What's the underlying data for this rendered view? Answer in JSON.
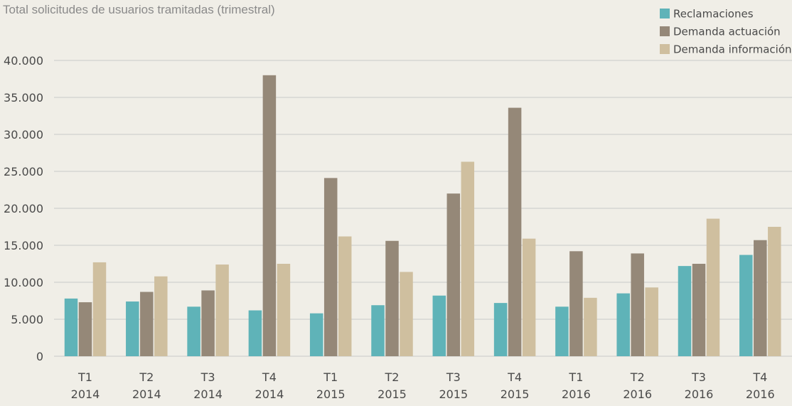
{
  "chart_data": {
    "type": "bar",
    "title": "Total solicitudes de usuarios tramitadas (trimestral)",
    "xlabel": "",
    "ylabel": "",
    "ylim": [
      0,
      40000
    ],
    "yticks": [
      0,
      5000,
      10000,
      15000,
      20000,
      25000,
      30000,
      35000,
      40000
    ],
    "ytick_labels": [
      "0",
      "5.000",
      "10.000",
      "15.000",
      "20.000",
      "25.000",
      "30.000",
      "35.000",
      "40.000"
    ],
    "grid": true,
    "legend_position": "top-right",
    "categories": [
      {
        "quarter": "T1",
        "year": "2014"
      },
      {
        "quarter": "T2",
        "year": "2014"
      },
      {
        "quarter": "T3",
        "year": "2014"
      },
      {
        "quarter": "T4",
        "year": "2014"
      },
      {
        "quarter": "T1",
        "year": "2015"
      },
      {
        "quarter": "T2",
        "year": "2015"
      },
      {
        "quarter": "T3",
        "year": "2015"
      },
      {
        "quarter": "T4",
        "year": "2015"
      },
      {
        "quarter": "T1",
        "year": "2016"
      },
      {
        "quarter": "T2",
        "year": "2016"
      },
      {
        "quarter": "T3",
        "year": "2016"
      },
      {
        "quarter": "T4",
        "year": "2016"
      }
    ],
    "series": [
      {
        "name": "Reclamaciones",
        "color": "#5fb3b8",
        "values": [
          7800,
          7400,
          6700,
          6200,
          5800,
          6900,
          8200,
          7200,
          6700,
          8500,
          12200,
          13700
        ]
      },
      {
        "name": "Demanda actuación",
        "color": "#958878",
        "values": [
          7300,
          8700,
          8900,
          38000,
          24100,
          15600,
          22000,
          33600,
          14200,
          13900,
          12500,
          15700
        ]
      },
      {
        "name": "Demanda información",
        "color": "#cfbf9f",
        "values": [
          12700,
          10800,
          12400,
          12500,
          16200,
          11400,
          26300,
          15900,
          7900,
          9300,
          18600,
          17500
        ]
      }
    ]
  }
}
